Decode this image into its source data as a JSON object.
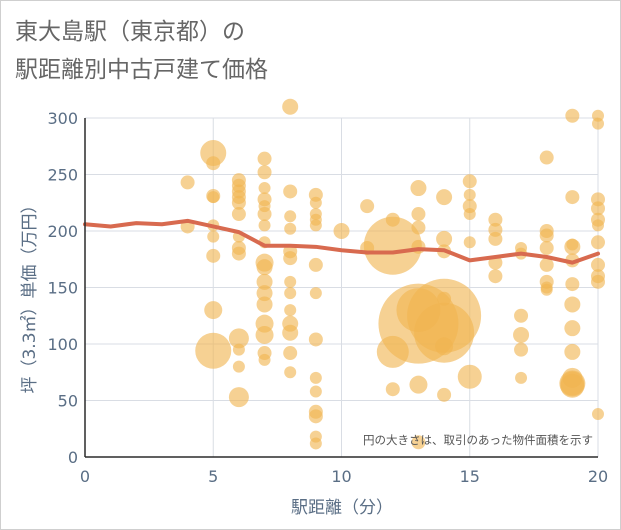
{
  "title": "東大島駅（東京都）の",
  "subtitle": "駅距離別中古戸建て価格",
  "chart_data": {
    "type": "scatter",
    "xlabel": "駅距離（分）",
    "ylabel": "坪（3.3㎡）単価（万円）",
    "xlim": [
      0,
      20
    ],
    "ylim": [
      0,
      300
    ],
    "xticks": [
      0,
      5,
      10,
      15,
      20
    ],
    "yticks": [
      0,
      50,
      100,
      150,
      200,
      250,
      300
    ],
    "grid": true,
    "annotation": "円の大きさは、取引のあった物件面積を示す",
    "colors": {
      "bubble": "#f0b550",
      "line": "#d86a4f",
      "grid": "#d9dde4",
      "axis_text": "#5a6e85"
    },
    "bubble_series": {
      "x": [
        4,
        4,
        5,
        5,
        5,
        5,
        5,
        5,
        5,
        5,
        5,
        6,
        6,
        6,
        6,
        6,
        6,
        6,
        6,
        6,
        6,
        6,
        6,
        6,
        7,
        7,
        7,
        7,
        7,
        7,
        7,
        7,
        7,
        7,
        7,
        7,
        7,
        7,
        7,
        7,
        7,
        8,
        8,
        8,
        8,
        8,
        8,
        8,
        8,
        8,
        8,
        8,
        8,
        8,
        9,
        9,
        9,
        9,
        9,
        9,
        9,
        9,
        9,
        9,
        9,
        9,
        9,
        9,
        10,
        11,
        11,
        12,
        12,
        12,
        12,
        13,
        13,
        13,
        13,
        13,
        13,
        13,
        13,
        14,
        14,
        14,
        14,
        14,
        14,
        14,
        14,
        15,
        15,
        15,
        15,
        15,
        15,
        16,
        16,
        16,
        16,
        16,
        17,
        17,
        17,
        17,
        17,
        17,
        18,
        18,
        18,
        18,
        18,
        18,
        18,
        18,
        19,
        19,
        19,
        19,
        19,
        19,
        19,
        19,
        19,
        19,
        19,
        19,
        19,
        20,
        20,
        20,
        20,
        20,
        20,
        20,
        20,
        20,
        20,
        20
      ],
      "y": [
        243,
        204,
        269,
        260,
        231,
        230,
        205,
        195,
        178,
        130,
        94,
        245,
        240,
        235,
        230,
        225,
        215,
        195,
        185,
        180,
        105,
        95,
        80,
        53,
        264,
        252,
        238,
        228,
        222,
        215,
        205,
        190,
        172,
        168,
        155,
        145,
        135,
        118,
        108,
        92,
        86,
        310,
        235,
        213,
        202,
        182,
        176,
        155,
        145,
        130,
        118,
        110,
        92,
        75,
        232,
        225,
        215,
        210,
        205,
        170,
        145,
        104,
        70,
        58,
        40,
        36,
        18,
        12,
        200,
        222,
        185,
        210,
        187,
        93,
        60,
        238,
        215,
        203,
        186,
        130,
        118,
        64,
        13,
        230,
        193,
        182,
        140,
        125,
        110,
        98,
        55,
        244,
        232,
        222,
        215,
        190,
        71,
        210,
        201,
        193,
        172,
        160,
        185,
        180,
        125,
        108,
        95,
        70,
        265,
        200,
        196,
        185,
        170,
        155,
        150,
        148,
        302,
        230,
        188,
        186,
        174,
        153,
        135,
        114,
        93,
        70,
        65,
        65,
        63,
        302,
        295,
        228,
        220,
        210,
        205,
        190,
        170,
        160,
        155,
        38
      ],
      "r": [
        7,
        7,
        13,
        7,
        7,
        6,
        6,
        6,
        7,
        9,
        18,
        7,
        7,
        7,
        7,
        7,
        7,
        6,
        7,
        7,
        10,
        6,
        6,
        10,
        7,
        7,
        6,
        7,
        6,
        7,
        6,
        6,
        9,
        8,
        8,
        8,
        8,
        9,
        9,
        7,
        6,
        8,
        7,
        6,
        6,
        7,
        7,
        6,
        6,
        6,
        8,
        8,
        7,
        6,
        7,
        6,
        6,
        6,
        6,
        7,
        6,
        7,
        6,
        6,
        7,
        7,
        6,
        6,
        8,
        7,
        7,
        7,
        29,
        16,
        7,
        8,
        7,
        7,
        7,
        22,
        40,
        9,
        7,
        8,
        8,
        7,
        7,
        37,
        30,
        9,
        7,
        7,
        6,
        7,
        6,
        6,
        12,
        7,
        7,
        7,
        7,
        7,
        6,
        6,
        7,
        8,
        7,
        6,
        7,
        7,
        7,
        7,
        7,
        7,
        6,
        6,
        7,
        7,
        6,
        8,
        7,
        7,
        8,
        8,
        8,
        10,
        13,
        12,
        12,
        6,
        6,
        7,
        7,
        7,
        6,
        7,
        7,
        7,
        7,
        6
      ]
    },
    "line_series": {
      "x": [
        0,
        1,
        2,
        3,
        4,
        5,
        6,
        7,
        8,
        9,
        10,
        11,
        12,
        13,
        14,
        15,
        16,
        17,
        18,
        19,
        20
      ],
      "y": [
        206,
        204,
        207,
        206,
        209,
        204,
        199,
        187,
        187,
        186,
        183,
        181,
        181,
        184,
        183,
        174,
        177,
        180,
        177,
        172,
        180
      ]
    }
  }
}
